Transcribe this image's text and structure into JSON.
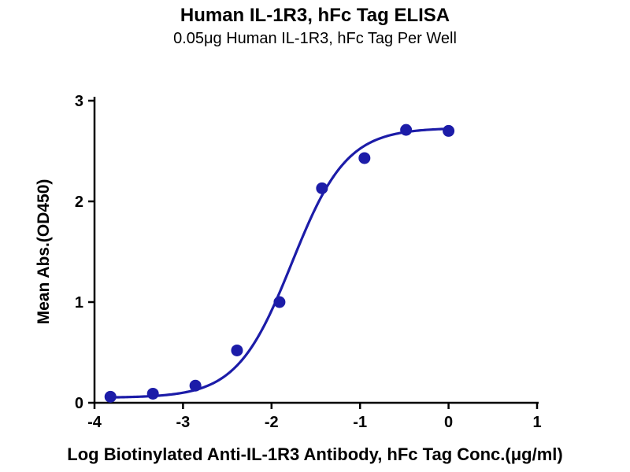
{
  "page": {
    "background": "#ffffff"
  },
  "header": {
    "title": "Human IL-1R3, hFc Tag ELISA",
    "subtitle": "0.05μg Human IL-1R3, hFc Tag Per Well"
  },
  "chart_data": {
    "type": "scatter",
    "title": "Human IL-1R3, hFc Tag ELISA",
    "subtitle": "0.05μg Human IL-1R3, hFc Tag Per Well",
    "xlabel": "Log Biotinylated Anti-IL-1R3 Antibody, hFc Tag Conc.(μg/ml)",
    "ylabel": "Mean Abs.(OD450)",
    "xlim": [
      -4,
      1
    ],
    "ylim": [
      0,
      3
    ],
    "xticks": [
      -4,
      -3,
      -2,
      -1,
      0,
      1
    ],
    "yticks": [
      0,
      1,
      2,
      3
    ],
    "grid": false,
    "legend": "none",
    "series": [
      {
        "name": "Human IL-1R3, hFc Tag",
        "marker": "circle",
        "color": "#1c1ca8",
        "points": [
          {
            "x": -3.82,
            "y": 0.06
          },
          {
            "x": -3.34,
            "y": 0.09
          },
          {
            "x": -2.86,
            "y": 0.17
          },
          {
            "x": -2.39,
            "y": 0.52
          },
          {
            "x": -1.91,
            "y": 1.0
          },
          {
            "x": -1.43,
            "y": 2.13
          },
          {
            "x": -0.95,
            "y": 2.43
          },
          {
            "x": -0.48,
            "y": 2.71
          },
          {
            "x": 0.0,
            "y": 2.7
          }
        ]
      }
    ],
    "curve_fit": {
      "model": "4PL",
      "bottom": 0.05,
      "top": 2.73,
      "log_ec50": -1.77,
      "hill": 1.4,
      "color": "#1c1ca8"
    }
  }
}
